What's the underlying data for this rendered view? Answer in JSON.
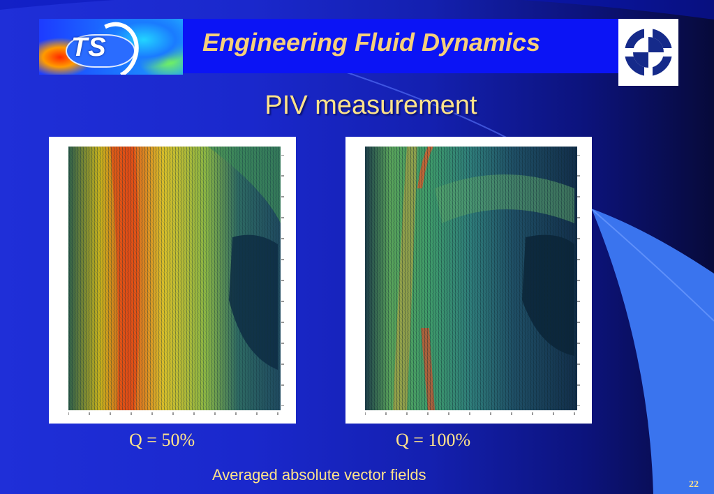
{
  "header": {
    "title": "Engineering Fluid Dynamics",
    "logo_left_text": "TS",
    "bar_color": "#0b14f5"
  },
  "slide": {
    "title": "PIV measurement",
    "title_color": "#ffe38a",
    "footer": "Averaged absolute vector fields",
    "page_number": "22"
  },
  "figures": [
    {
      "caption": "Q = 50%"
    },
    {
      "caption": "Q = 100%"
    }
  ],
  "icons": {
    "left_logo": "ts-logo-icon",
    "right_logo": "university-logo-icon"
  }
}
